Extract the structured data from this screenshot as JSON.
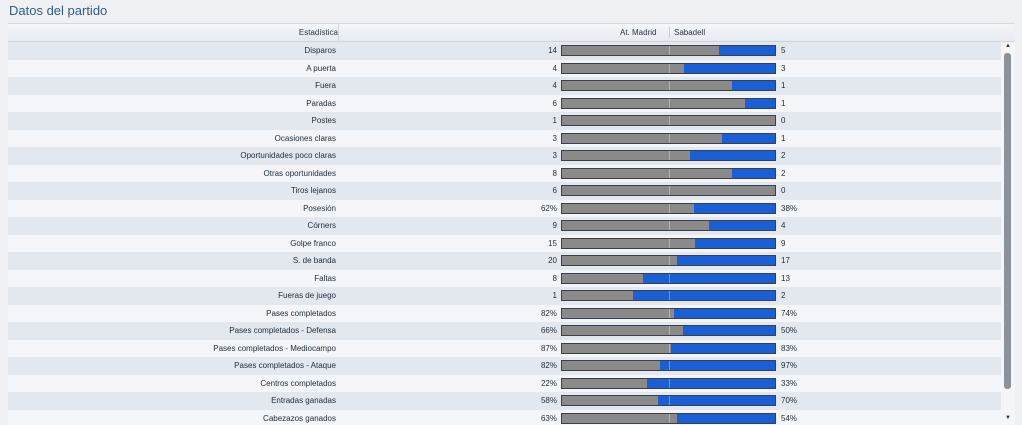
{
  "title": "Datos del partido",
  "header": {
    "stat": "Estadística",
    "home": "At. Madrid",
    "away": "Sabadell"
  },
  "rows": [
    {
      "label": "Disparos",
      "home": "14",
      "away": "5",
      "share": 0.737
    },
    {
      "label": "A puerta",
      "home": "4",
      "away": "3",
      "share": 0.571
    },
    {
      "label": "Fuera",
      "home": "4",
      "away": "1",
      "share": 0.8
    },
    {
      "label": "Paradas",
      "home": "6",
      "away": "1",
      "share": 0.857
    },
    {
      "label": "Postes",
      "home": "1",
      "away": "0",
      "share": 1.0
    },
    {
      "label": "Ocasiones claras",
      "home": "3",
      "away": "1",
      "share": 0.75
    },
    {
      "label": "Oportunidades poco claras",
      "home": "3",
      "away": "2",
      "share": 0.6
    },
    {
      "label": "Otras oportunidades",
      "home": "8",
      "away": "2",
      "share": 0.8
    },
    {
      "label": "Tiros lejanos",
      "home": "6",
      "away": "0",
      "share": 1.0
    },
    {
      "label": "Posesión",
      "home": "62%",
      "away": "38%",
      "share": 0.62
    },
    {
      "label": "Córners",
      "home": "9",
      "away": "4",
      "share": 0.692
    },
    {
      "label": "Golpe franco",
      "home": "15",
      "away": "9",
      "share": 0.625
    },
    {
      "label": "S. de banda",
      "home": "20",
      "away": "17",
      "share": 0.541
    },
    {
      "label": "Faltas",
      "home": "8",
      "away": "13",
      "share": 0.381
    },
    {
      "label": "Fueras de juego",
      "home": "1",
      "away": "2",
      "share": 0.333
    },
    {
      "label": "Pases completados",
      "home": "82%",
      "away": "74%",
      "share": 0.526
    },
    {
      "label": "Pases completados - Defensa",
      "home": "66%",
      "away": "50%",
      "share": 0.569
    },
    {
      "label": "Pases completados - Mediocampo",
      "home": "87%",
      "away": "83%",
      "share": 0.512
    },
    {
      "label": "Pases completados - Ataque",
      "home": "82%",
      "away": "97%",
      "share": 0.458
    },
    {
      "label": "Centros completados",
      "home": "22%",
      "away": "33%",
      "share": 0.4
    },
    {
      "label": "Entradas ganadas",
      "home": "58%",
      "away": "70%",
      "share": 0.453
    },
    {
      "label": "Cabezazos ganados",
      "home": "63%",
      "away": "54%",
      "share": 0.538
    }
  ],
  "colors": {
    "home_bar": "#8a8a8a",
    "away_bar": "#1a5fd6",
    "title": "#2f5d86"
  },
  "icons": {
    "scroll_up": "scroll-up-arrow-icon",
    "scroll_down": "scroll-down-arrow-icon"
  }
}
